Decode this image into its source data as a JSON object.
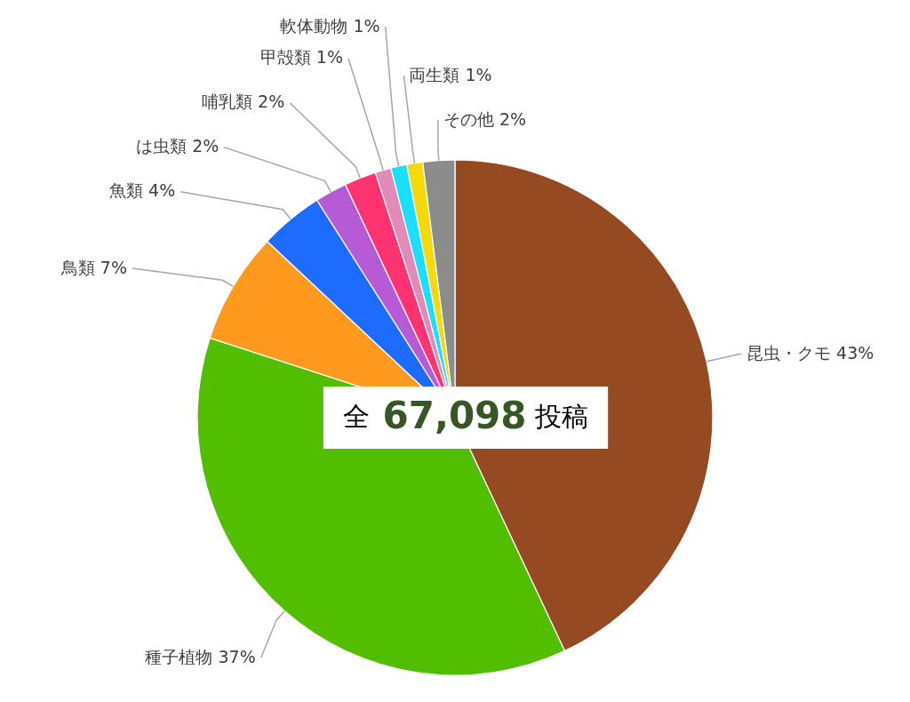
{
  "chart_data": {
    "type": "pie",
    "categories": [
      "昆虫・クモ",
      "種子植物",
      "鳥類",
      "魚類",
      "は虫類",
      "哺乳類",
      "甲殻類",
      "軟体動物",
      "両生類",
      "その他"
    ],
    "values": [
      43,
      37,
      7,
      4,
      2,
      2,
      1,
      1,
      1,
      2
    ],
    "value_labels": [
      "43%",
      "37%",
      "7%",
      "4%",
      "2%",
      "2%",
      "1%",
      "1%",
      "1%",
      "2%"
    ],
    "colors": [
      "#964a22",
      "#52be00",
      "#ff9a1e",
      "#1e6cff",
      "#b65ad6",
      "#ff3370",
      "#e08bb8",
      "#19e0ff",
      "#f5d90a",
      "#8c8c8c"
    ],
    "annotations": [
      "全 67,098 投稿"
    ]
  }
}
